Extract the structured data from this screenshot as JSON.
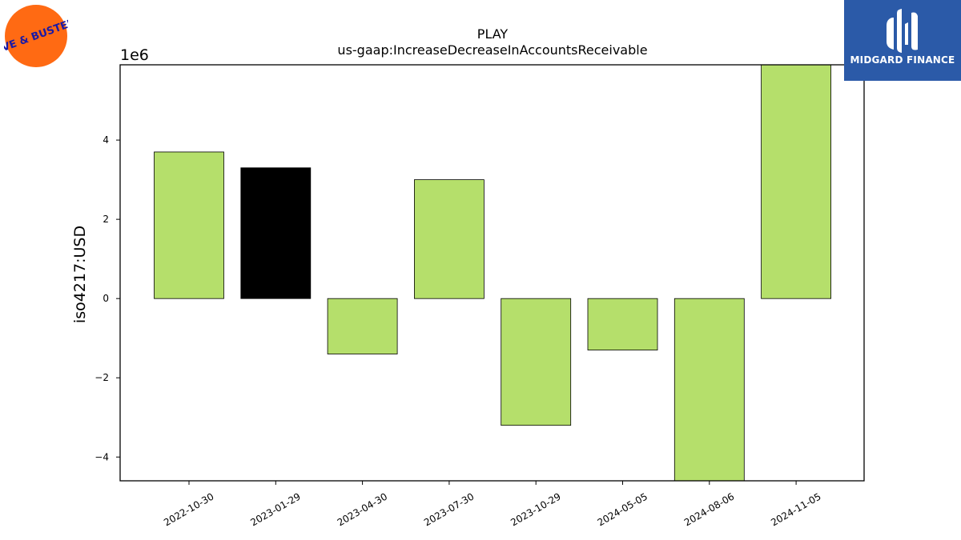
{
  "logos": {
    "left": {
      "icon": "dave-and-busters-logo",
      "text": "DAVE & BUSTER'S",
      "bg_color": "#ff6a13",
      "text_color": "#1a1aa6"
    },
    "right": {
      "icon": "midgard-finance-logo",
      "text": "MIDGARD FINANCE",
      "bg_color": "#2b5aa8"
    }
  },
  "chart_data": {
    "type": "bar",
    "title": "PLAY",
    "subtitle": "us-gaap:IncreaseDecreaseInAccountsReceivable",
    "xlabel": "",
    "ylabel": "iso4217:USD",
    "y_multiplier_label": "1e6",
    "categories": [
      "2022-10-30",
      "2023-01-29",
      "2023-04-30",
      "2023-07-30",
      "2023-10-29",
      "2024-05-05",
      "2024-08-06",
      "2024-11-05"
    ],
    "values": [
      3700000,
      3300000,
      -1400000,
      3000000,
      -3200000,
      -1300000,
      -4600000,
      5900000
    ],
    "bar_colors": [
      "#b5df6b",
      "#000000",
      "#b5df6b",
      "#b5df6b",
      "#b5df6b",
      "#b5df6b",
      "#b5df6b",
      "#b5df6b"
    ],
    "ylim": [
      -4600000,
      5900000
    ],
    "yticks": [
      -4,
      -2,
      0,
      2,
      4
    ],
    "ytick_labels": [
      "−4",
      "−2",
      "0",
      "2",
      "4"
    ],
    "grid": false,
    "legend": "none"
  }
}
